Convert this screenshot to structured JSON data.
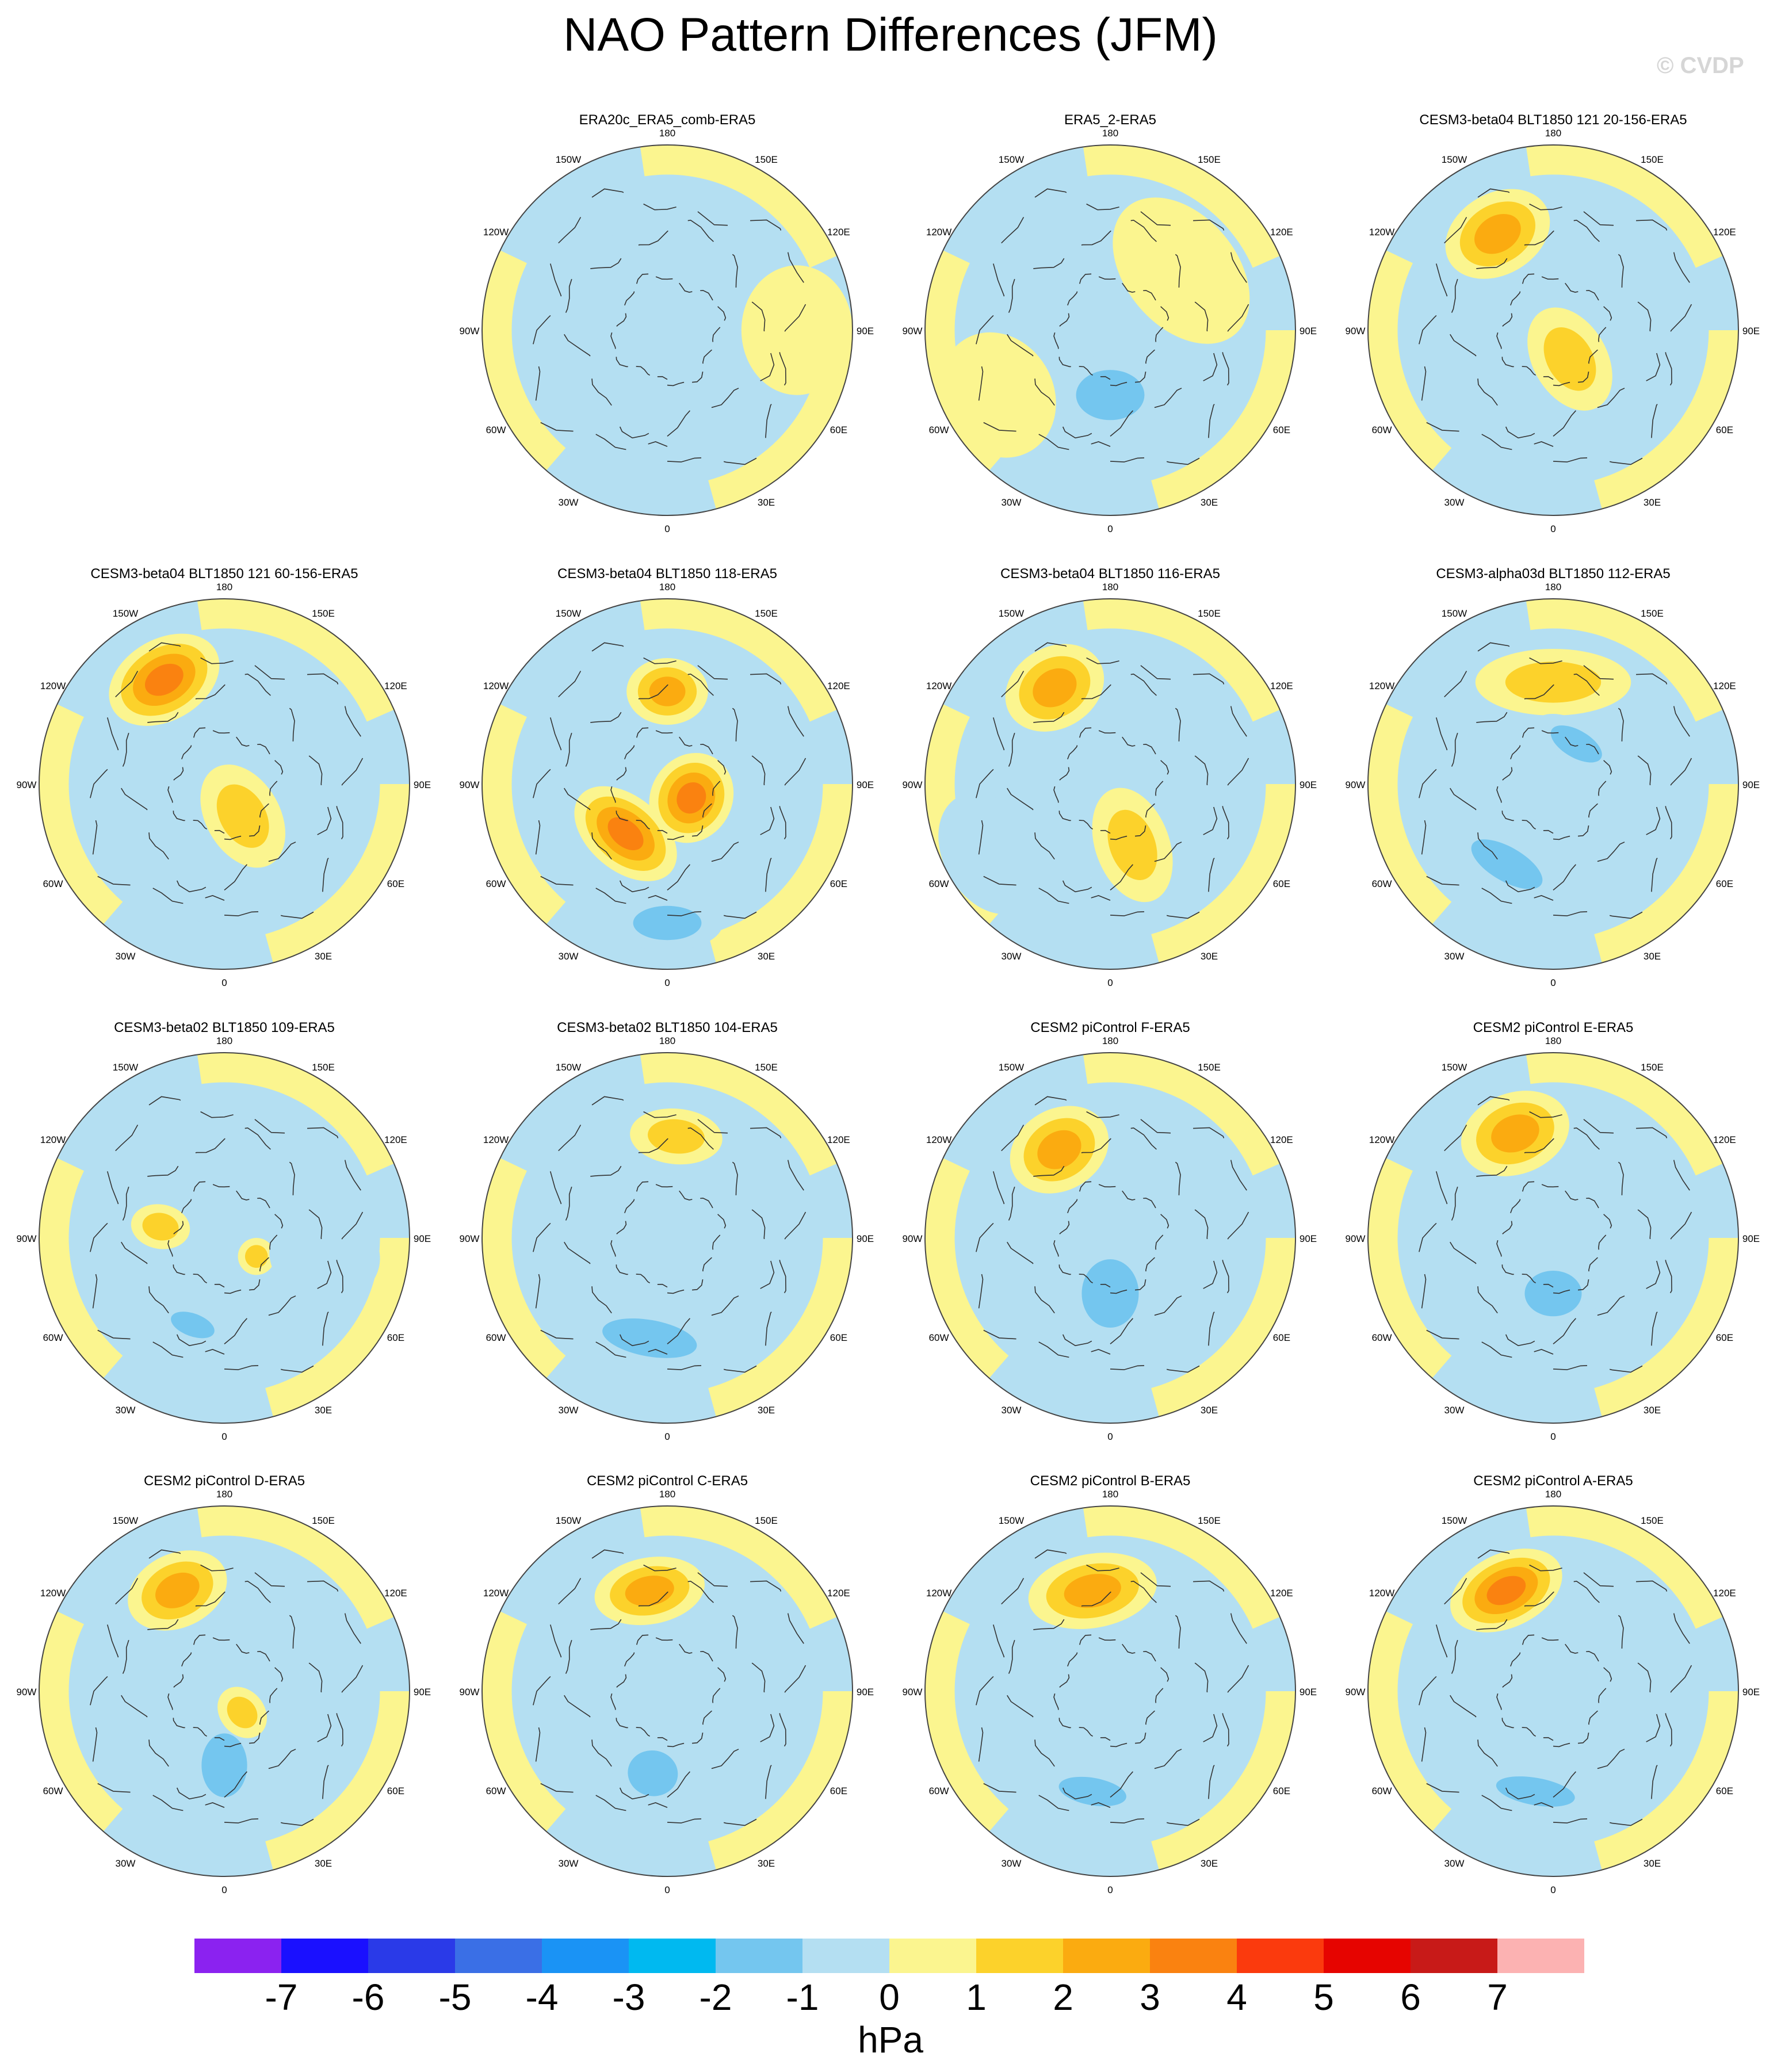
{
  "title": "NAO Pattern Differences (JFM)",
  "watermark": "© CVDP",
  "longitude_labels": {
    "top": "180",
    "bottom": "0",
    "left": "90W",
    "right": "90E",
    "upper_left_outer": "150W",
    "upper_left_inner": "120W",
    "upper_right_outer": "150E",
    "upper_right_inner": "120E",
    "lower_left_inner": "60W",
    "lower_left_outer": "30W",
    "lower_right_inner": "60E",
    "lower_right_outer": "30E"
  },
  "colors": {
    "levels": [
      "#8b22f0",
      "#1a10ff",
      "#2a3ae8",
      "#3a6fe6",
      "#1a93f5",
      "#00b9f0",
      "#74c6ef",
      "#b4dff2",
      "#fbf58f",
      "#fcd22b",
      "#fbab10",
      "#fa8210",
      "#fb3a0d",
      "#e60400",
      "#c81a18",
      "#fcb2b2"
    ],
    "coast": "#333333"
  },
  "chart_data": {
    "type": "contour map",
    "projection": "north polar stereographic",
    "units": "hPa",
    "colorbar": {
      "ticks": [
        "-7",
        "-6",
        "-5",
        "-4",
        "-3",
        "-2",
        "-1",
        "0",
        "1",
        "2",
        "3",
        "4",
        "5",
        "6",
        "7"
      ],
      "label": "hPa"
    },
    "panels": [
      {
        "name": "ERA20c_ERA5_comb-ERA5",
        "row": 0,
        "col": 1,
        "features": [
          {
            "lon": 20,
            "colat": 0.25,
            "rx": 0.5,
            "ry": 0.5,
            "value": -0.5
          },
          {
            "lon": -120,
            "colat": 0.55,
            "rx": 0.3,
            "ry": 0.18,
            "value": -0.5
          },
          {
            "lon": 90,
            "colat": 0.7,
            "rx": 0.35,
            "ry": 0.3,
            "value": 0.5
          }
        ]
      },
      {
        "name": "ERA5_2-ERA5",
        "row": 0,
        "col": 2,
        "features": [
          {
            "lon": 0,
            "colat": 0.35,
            "rx": 0.3,
            "ry": 0.22,
            "value": -1.5
          },
          {
            "lon": 130,
            "colat": 0.5,
            "rx": 0.45,
            "ry": 0.3,
            "value": 0.5
          },
          {
            "lon": -60,
            "colat": 0.7,
            "rx": 0.35,
            "ry": 0.3,
            "value": 0.5
          }
        ]
      },
      {
        "name": "CESM3-beta04 BLT1850 121 20-156-ERA5",
        "row": 0,
        "col": 3,
        "features": [
          {
            "lon": -150,
            "colat": 0.6,
            "rx": 0.3,
            "ry": 0.22,
            "value": 2.5
          },
          {
            "lon": 30,
            "colat": 0.18,
            "rx": 0.2,
            "ry": 0.3,
            "value": 1.5
          },
          {
            "lon": -10,
            "colat": 0.6,
            "rx": 0.4,
            "ry": 0.2,
            "value": -0.5
          }
        ]
      },
      {
        "name": "CESM3-beta04 BLT1850 121 60-156-ERA5",
        "row": 1,
        "col": 0,
        "features": [
          {
            "lon": -150,
            "colat": 0.65,
            "rx": 0.32,
            "ry": 0.22,
            "value": 3.5
          },
          {
            "lon": 30,
            "colat": 0.2,
            "rx": 0.2,
            "ry": 0.3,
            "value": 1.5
          },
          {
            "lon": -20,
            "colat": 0.55,
            "rx": 0.45,
            "ry": 0.2,
            "value": -0.5
          }
        ]
      },
      {
        "name": "CESM3-beta04 BLT1850 118-ERA5",
        "row": 1,
        "col": 1,
        "features": [
          {
            "lon": 180,
            "colat": 0.5,
            "rx": 0.22,
            "ry": 0.18,
            "value": 2.5
          },
          {
            "lon": 60,
            "colat": 0.15,
            "rx": 0.25,
            "ry": 0.22,
            "value": 3.5
          },
          {
            "lon": -40,
            "colat": 0.35,
            "rx": 0.32,
            "ry": 0.2,
            "value": 3.5
          },
          {
            "lon": 0,
            "colat": 0.75,
            "rx": 0.3,
            "ry": 0.15,
            "value": -1.5
          }
        ]
      },
      {
        "name": "CESM3-beta04 BLT1850 116-ERA5",
        "row": 1,
        "col": 2,
        "features": [
          {
            "lon": -150,
            "colat": 0.6,
            "rx": 0.28,
            "ry": 0.22,
            "value": 2.5
          },
          {
            "lon": 20,
            "colat": 0.35,
            "rx": 0.2,
            "ry": 0.32,
            "value": 1.5
          },
          {
            "lon": -60,
            "colat": 0.75,
            "rx": 0.35,
            "ry": 0.25,
            "value": -0.5
          }
        ]
      },
      {
        "name": "CESM3-alpha03d BLT1850 112-ERA5",
        "row": 1,
        "col": 3,
        "features": [
          {
            "lon": 180,
            "colat": 0.55,
            "rx": 0.42,
            "ry": 0.18,
            "value": 1.5
          },
          {
            "lon": -30,
            "colat": 0.5,
            "rx": 0.35,
            "ry": 0.15,
            "value": -1.5
          },
          {
            "lon": 150,
            "colat": 0.25,
            "rx": 0.25,
            "ry": 0.12,
            "value": -1.5
          }
        ]
      },
      {
        "name": "CESM3-beta02 BLT1850 109-ERA5",
        "row": 2,
        "col": 0,
        "features": [
          {
            "lon": -100,
            "colat": 0.35,
            "rx": 0.12,
            "ry": 0.16,
            "value": 1.5
          },
          {
            "lon": 60,
            "colat": 0.2,
            "rx": 0.1,
            "ry": 0.1,
            "value": 1.5
          },
          {
            "lon": -20,
            "colat": 0.5,
            "rx": 0.2,
            "ry": 0.1,
            "value": -1.5
          },
          {
            "lon": 80,
            "colat": 0.55,
            "rx": 0.25,
            "ry": 0.3,
            "value": -0.5
          }
        ]
      },
      {
        "name": "CESM3-beta02 BLT1850 104-ERA5",
        "row": 2,
        "col": 1,
        "features": [
          {
            "lon": 175,
            "colat": 0.55,
            "rx": 0.25,
            "ry": 0.15,
            "value": 1.5
          },
          {
            "lon": -10,
            "colat": 0.55,
            "rx": 0.42,
            "ry": 0.16,
            "value": -1.5
          }
        ]
      },
      {
        "name": "CESM2 piControl F-ERA5",
        "row": 2,
        "col": 2,
        "features": [
          {
            "lon": -150,
            "colat": 0.55,
            "rx": 0.28,
            "ry": 0.22,
            "value": 2.5
          },
          {
            "lon": 0,
            "colat": 0.3,
            "rx": 0.25,
            "ry": 0.3,
            "value": -1.5
          }
        ]
      },
      {
        "name": "CESM2 piControl E-ERA5",
        "row": 2,
        "col": 3,
        "features": [
          {
            "lon": -160,
            "colat": 0.6,
            "rx": 0.3,
            "ry": 0.22,
            "value": 2.5
          },
          {
            "lon": 0,
            "colat": 0.3,
            "rx": 0.25,
            "ry": 0.2,
            "value": -1.5
          }
        ]
      },
      {
        "name": "CESM2 piControl D-ERA5",
        "row": 3,
        "col": 0,
        "features": [
          {
            "lon": -155,
            "colat": 0.6,
            "rx": 0.28,
            "ry": 0.2,
            "value": 2.5
          },
          {
            "lon": 0,
            "colat": 0.4,
            "rx": 0.2,
            "ry": 0.28,
            "value": -1.5
          },
          {
            "lon": 40,
            "colat": 0.15,
            "rx": 0.12,
            "ry": 0.15,
            "value": 1.5
          }
        ]
      },
      {
        "name": "CESM2 piControl C-ERA5",
        "row": 3,
        "col": 1,
        "features": [
          {
            "lon": -170,
            "colat": 0.55,
            "rx": 0.3,
            "ry": 0.18,
            "value": 2.5
          },
          {
            "lon": -10,
            "colat": 0.45,
            "rx": 0.22,
            "ry": 0.2,
            "value": -1.5
          }
        ]
      },
      {
        "name": "CESM2 piControl B-ERA5",
        "row": 3,
        "col": 2,
        "features": [
          {
            "lon": -170,
            "colat": 0.55,
            "rx": 0.35,
            "ry": 0.2,
            "value": 2.5
          },
          {
            "lon": -10,
            "colat": 0.55,
            "rx": 0.3,
            "ry": 0.12,
            "value": -1.5
          }
        ]
      },
      {
        "name": "CESM2 piControl A-ERA5",
        "row": 3,
        "col": 3,
        "features": [
          {
            "lon": -155,
            "colat": 0.6,
            "rx": 0.32,
            "ry": 0.2,
            "value": 3.5
          },
          {
            "lon": -10,
            "colat": 0.55,
            "rx": 0.35,
            "ry": 0.12,
            "value": -1.5
          }
        ]
      }
    ]
  }
}
